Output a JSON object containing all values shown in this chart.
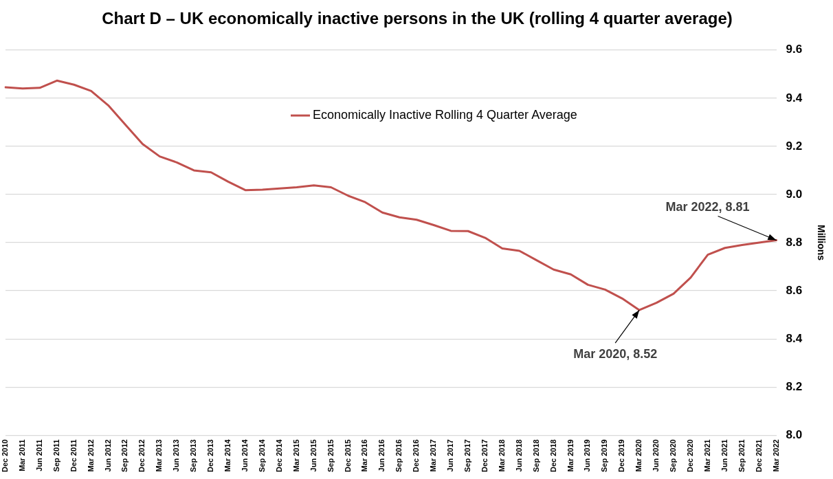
{
  "chart_data": {
    "type": "line",
    "title": "Chart D – UK economically inactive persons in the UK (rolling 4 quarter average)",
    "ylabel": "Millions",
    "categories": [
      "Dec 2010",
      "Mar 2011",
      "Jun 2011",
      "Sep 2011",
      "Dec 2011",
      "Mar 2012",
      "Jun 2012",
      "Sep 2012",
      "Dec 2012",
      "Mar 2013",
      "Jun 2013",
      "Sep 2013",
      "Dec 2013",
      "Mar 2014",
      "Jun 2014",
      "Sep 2014",
      "Dec 2014",
      "Mar 2015",
      "Jun 2015",
      "Sep 2015",
      "Dec 2015",
      "Mar 2016",
      "Jun 2016",
      "Sep 2016",
      "Dec 2016",
      "Mar 2017",
      "Jun 2017",
      "Sep 2017",
      "Dec 2017",
      "Mar 2018",
      "Jun 2018",
      "Sep 2018",
      "Dec 2018",
      "Mar 2019",
      "Jun 2019",
      "Sep 2019",
      "Dec 2019",
      "Mar 2020",
      "Jun 2020",
      "Sep 2020",
      "Dec 2020",
      "Mar 2021",
      "Jun 2021",
      "Sep 2021",
      "Dec 2021",
      "Mar 2022"
    ],
    "series": [
      {
        "name": "Economically Inactive Rolling 4 Quarter Average",
        "color": "#c0504d",
        "values": [
          9.445,
          9.44,
          9.443,
          9.473,
          9.456,
          9.43,
          9.37,
          9.29,
          9.21,
          9.158,
          9.133,
          9.1,
          9.092,
          9.053,
          9.018,
          9.02,
          9.025,
          9.03,
          9.038,
          9.03,
          8.995,
          8.968,
          8.925,
          8.905,
          8.895,
          8.873,
          8.849,
          8.848,
          8.82,
          8.776,
          8.766,
          8.727,
          8.688,
          8.668,
          8.625,
          8.605,
          8.568,
          8.52,
          8.55,
          8.588,
          8.655,
          8.75,
          8.778,
          8.79,
          8.8,
          8.81
        ]
      }
    ],
    "ylim": [
      8.0,
      9.6
    ],
    "yticks": [
      {
        "value": 8.0,
        "label": "8.0"
      },
      {
        "value": 8.2,
        "label": "8.2"
      },
      {
        "value": 8.4,
        "label": "8.4"
      },
      {
        "value": 8.6,
        "label": "8.6"
      },
      {
        "value": 8.8,
        "label": "8.8"
      },
      {
        "value": 9.0,
        "label": "9.0"
      },
      {
        "value": 9.2,
        "label": "9.2"
      },
      {
        "value": 9.4,
        "label": "9.4"
      },
      {
        "value": 9.6,
        "label": "9.6"
      }
    ],
    "grid": "y",
    "legend": "top",
    "marker": "none",
    "line_style": "solid",
    "annotations": [
      {
        "text": "Mar 2020, 8.52",
        "x": "Mar 2020",
        "y": 8.52
      },
      {
        "text": "Mar 2022, 8.81",
        "x": "Mar 2022",
        "y": 8.81
      }
    ]
  }
}
